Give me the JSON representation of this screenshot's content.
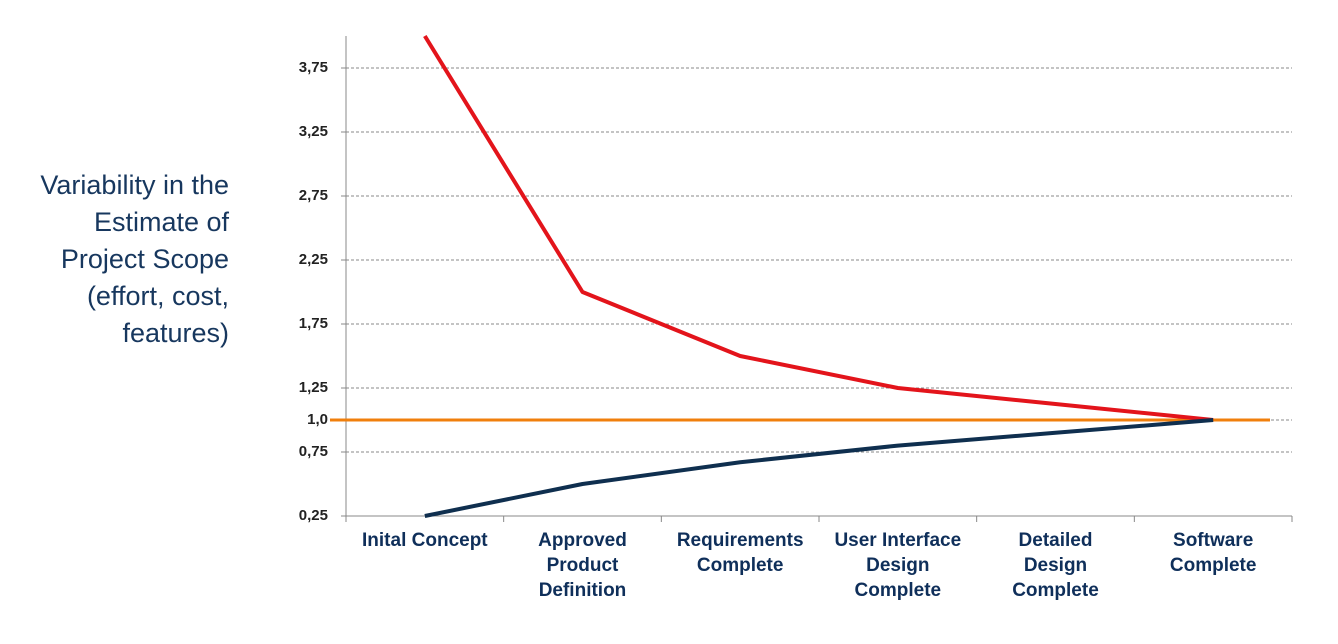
{
  "chart_data": {
    "type": "line",
    "ylabel": [
      "Variability in the",
      "Estimate of",
      "Project Scope",
      "(effort, cost,",
      "features)"
    ],
    "categories": [
      [
        "Inital Concept"
      ],
      [
        "Approved",
        "Product",
        "Definition"
      ],
      [
        "Requirements",
        "Complete"
      ],
      [
        "User Interface",
        "Design",
        "Complete"
      ],
      [
        "Detailed",
        "Design",
        "Complete"
      ],
      [
        "Software",
        "Complete"
      ]
    ],
    "series": [
      {
        "color": "#e3141b",
        "values": [
          4.0,
          2.0,
          1.5,
          1.25,
          1.125,
          1.0
        ]
      },
      {
        "color": "#0f2f4f",
        "values": [
          0.25,
          0.5,
          0.67,
          0.8,
          0.9,
          1.0
        ]
      }
    ],
    "reference_line": {
      "value": 1.0,
      "color": "#f07f0c"
    },
    "ylim": [
      0.25,
      4.0
    ],
    "yticks": [
      {
        "value": 0.25,
        "label": "0,25"
      },
      {
        "value": 0.75,
        "label": "0,75"
      },
      {
        "value": 1.0,
        "label": "1,0"
      },
      {
        "value": 1.25,
        "label": "1,25"
      },
      {
        "value": 1.75,
        "label": "1,75"
      },
      {
        "value": 2.25,
        "label": "2,25"
      },
      {
        "value": 2.75,
        "label": "2,75"
      },
      {
        "value": 3.25,
        "label": "3,25"
      },
      {
        "value": 3.75,
        "label": "3,75"
      }
    ],
    "grid": true
  }
}
